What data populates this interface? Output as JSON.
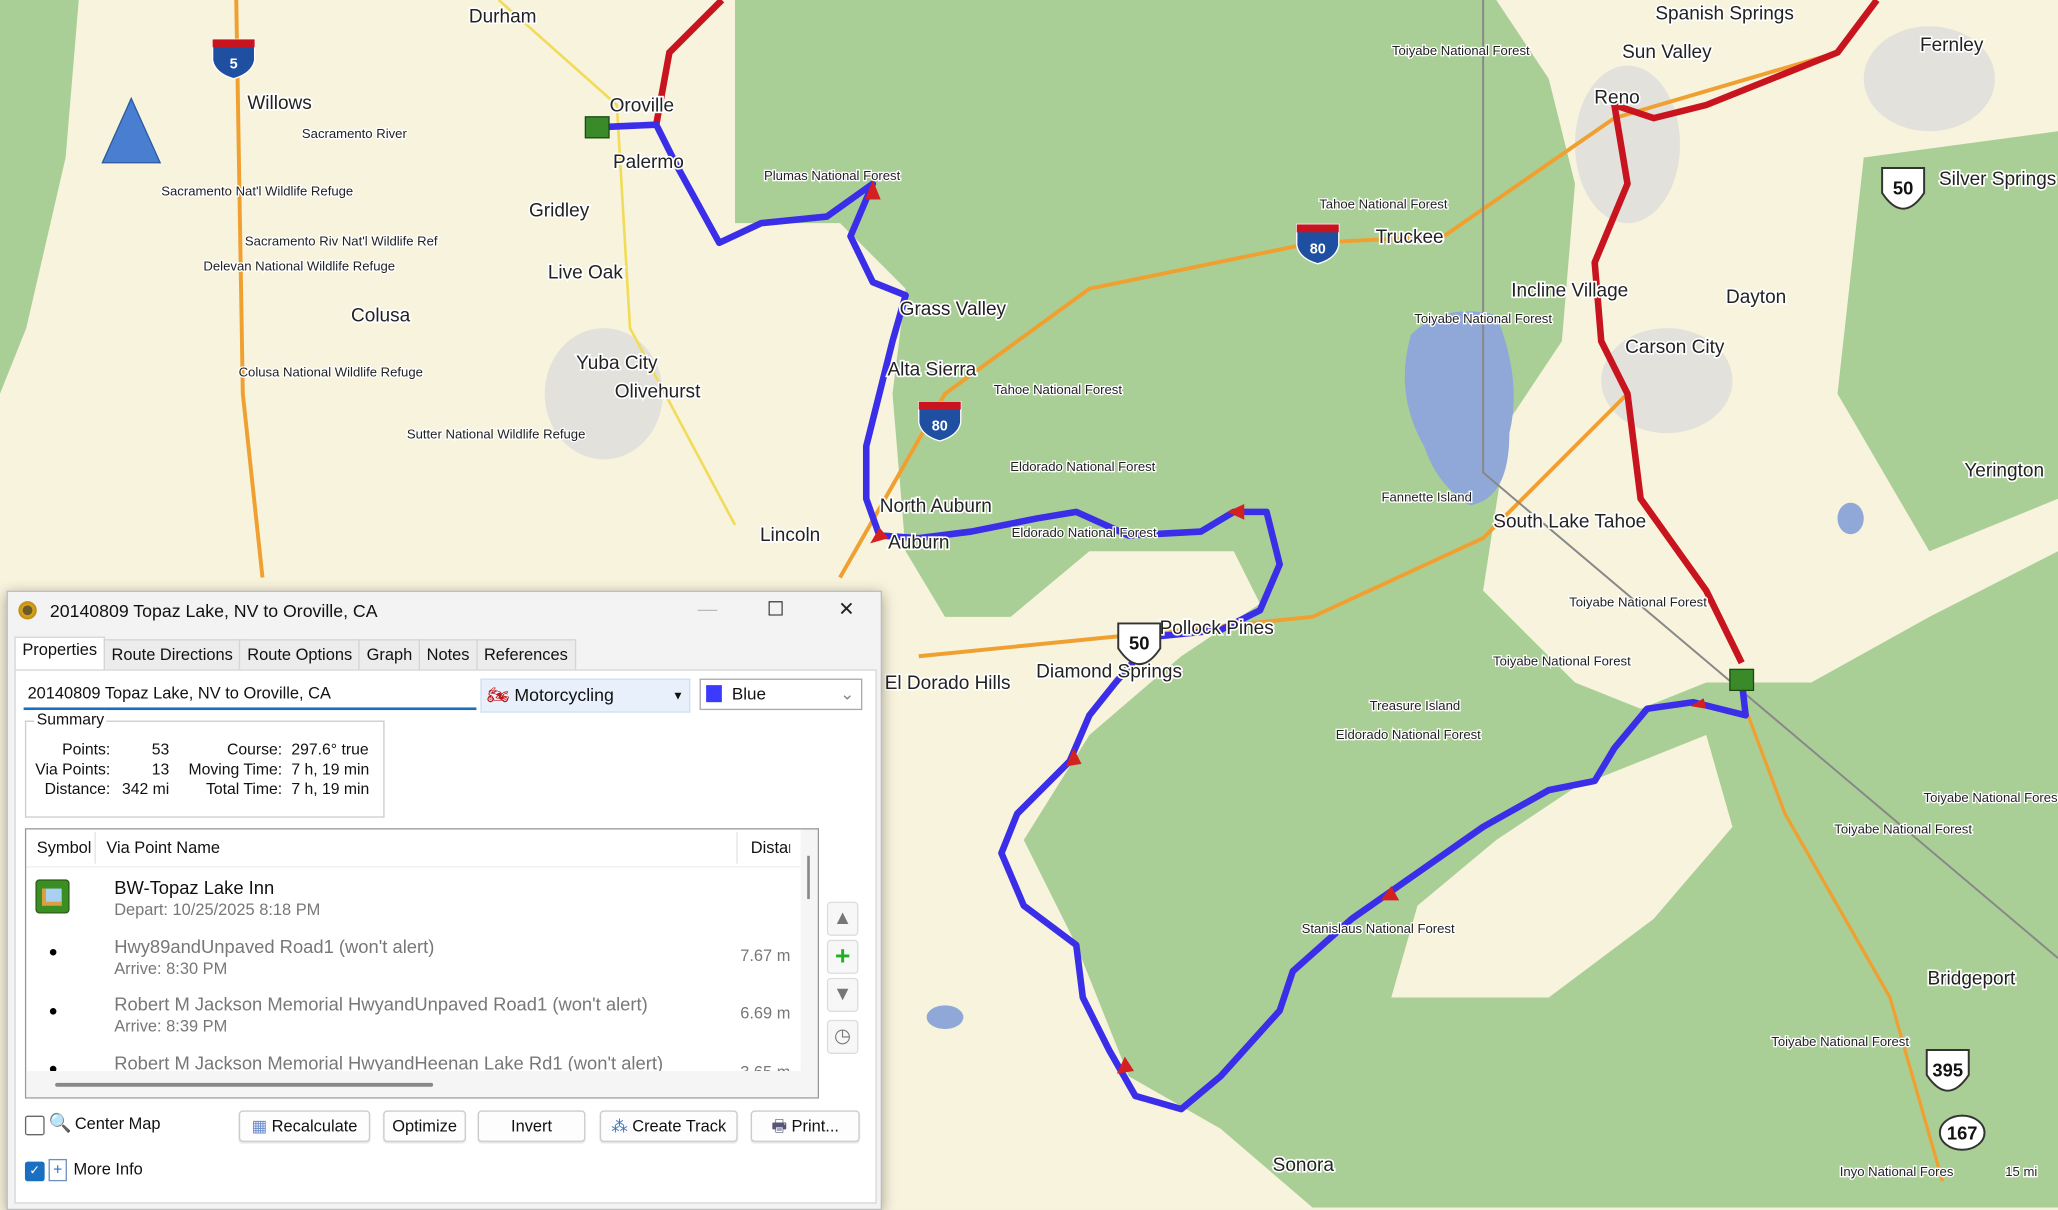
{
  "colors": {
    "forest": "#aacf96",
    "land": "#f8f3dc",
    "water": "#8fa8d8",
    "route": "#3a2ee8",
    "route_other": "#c8141e",
    "highway": "#f0a030",
    "road": "#f1dc5a"
  },
  "map": {
    "labels": [
      "Durham",
      "Willows",
      "Oroville",
      "Palermo",
      "Gridley",
      "Live Oak",
      "Colusa",
      "Yuba City",
      "Olivehurst",
      "Lincoln",
      "Grass Valley",
      "Alta Sierra",
      "North Auburn",
      "Auburn",
      "Truckee",
      "Incline Village",
      "Carson City",
      "Dayton",
      "Reno",
      "Sun Valley",
      "Spanish Springs",
      "Fernley",
      "Silver Springs",
      "Yerington",
      "South Lake Tahoe",
      "Diamond Springs",
      "El Dorado Hills",
      "Pollock Pines",
      "Sonora",
      "Bridgeport"
    ],
    "small_labels": [
      "Sacramento River",
      "Sacramento Nat'l Wildlife Refuge",
      "Sacramento Riv Nat'l Wildlife Ref",
      "Delevan National Wildlife Refuge",
      "Colusa National Wildlife Refuge",
      "Sutter National Wildlife Refuge",
      "Plumas National Forest",
      "Tahoe National Forest",
      "Tahoe National Forest",
      "Toiyabe National Forest",
      "Toiyabe National Forest",
      "Toiyabe National Forest",
      "Toiyabe National Forest",
      "Toiyabe National Forest",
      "Toiyabe National Forest",
      "Toiyabe National Forest",
      "Eldorado National Forest",
      "Eldorado National Forest",
      "Eldorado National Forest",
      "Fannette Island",
      "Treasure Island",
      "Stanislaus National Forest",
      "Inyo National Fores",
      "15 mi"
    ],
    "shields": [
      {
        "type": "interstate",
        "number": "5"
      },
      {
        "type": "interstate",
        "number": "80"
      },
      {
        "type": "interstate",
        "number": "80"
      },
      {
        "type": "us",
        "number": "50"
      },
      {
        "type": "us",
        "number": "50"
      },
      {
        "type": "us",
        "number": "395"
      },
      {
        "type": "state",
        "number": "167"
      }
    ]
  },
  "dialog": {
    "title": "20140809 Topaz Lake, NV to Oroville, CA",
    "window_controls": {
      "minimize": "—",
      "maximize": "☐",
      "close": "✕"
    },
    "tabs": [
      "Properties",
      "Route Directions",
      "Route Options",
      "Graph",
      "Notes",
      "References"
    ],
    "route_name": "20140809 Topaz Lake, NV to Oroville, CA",
    "activity": "Motorcycling",
    "color": "Blue",
    "color_swatch": "#3b3bff",
    "summary": {
      "legend": "Summary",
      "points_label": "Points:",
      "points": "53",
      "via_label": "Via Points:",
      "via": "13",
      "distance_label": "Distance:",
      "distance": "342 mi",
      "course_label": "Course:",
      "course": "297.6° true",
      "moving_label": "Moving Time:",
      "moving": "7 h, 19 min",
      "total_label": "Total Time:",
      "total": "7 h, 19 min"
    },
    "columns": [
      "Symbol",
      "Via Point Name",
      "Distar"
    ],
    "via_points": [
      {
        "name": "BW-Topaz Lake Inn",
        "sub": "Depart: 10/25/2025 8:18 PM",
        "dist": ""
      },
      {
        "name": "Hwy89andUnpaved Road1 (won't alert)",
        "sub": "Arrive: 8:30 PM",
        "dist": "7.67 m"
      },
      {
        "name": "Robert M Jackson Memorial HwyandUnpaved Road1 (won't alert)",
        "sub": "Arrive: 8:39 PM",
        "dist": "6.69 m"
      },
      {
        "name": "Robert M Jackson Memorial HwyandHeenan Lake Rd1 (won't alert)",
        "sub": "",
        "dist": "3.65 m"
      }
    ],
    "side_buttons": {
      "up": "▲",
      "add": "+",
      "down": "▼",
      "clock": "◷"
    },
    "center_map": {
      "label": "Center Map",
      "checked": false
    },
    "more_info": {
      "label": "More Info",
      "checked": true
    },
    "buttons": {
      "recalculate": "Recalculate",
      "optimize": "Optimize",
      "invert": "Invert",
      "create_track": "Create Track",
      "print": "Print..."
    }
  }
}
